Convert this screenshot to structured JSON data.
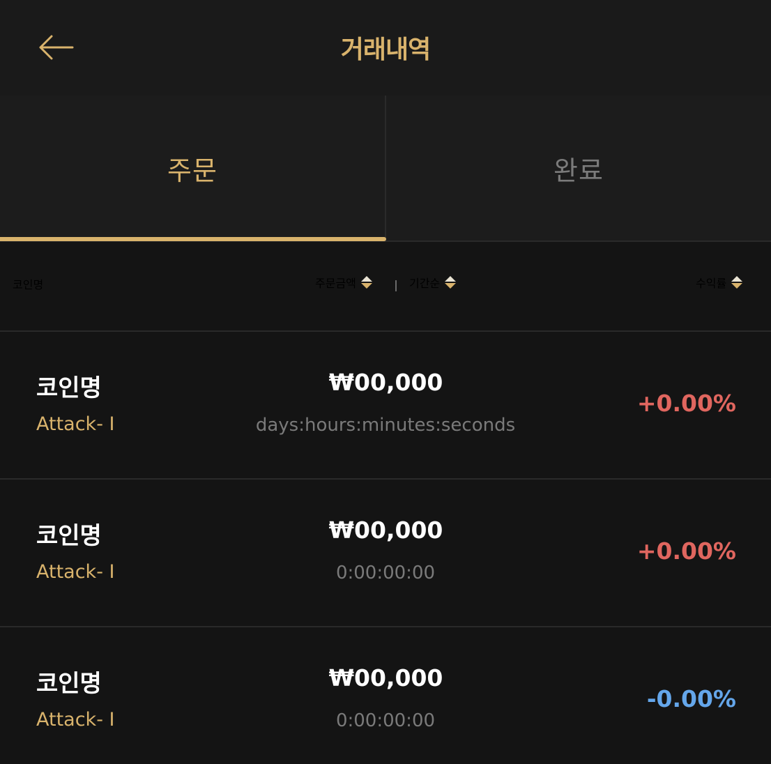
{
  "header": {
    "title": "거래내역",
    "back_icon": "arrow-left-icon"
  },
  "tabs": [
    {
      "label": "주문",
      "active": true
    },
    {
      "label": "완료",
      "active": false
    }
  ],
  "columns": {
    "coin": "코인명",
    "amount": "주문금액",
    "period": "기간순",
    "rate": "수익률"
  },
  "rows": [
    {
      "coin": "코인명",
      "strategy": "Attack- I",
      "amount": "₩00,000",
      "duration": "days:hours:minutes:seconds",
      "rate": "+0.00%",
      "direction": "up"
    },
    {
      "coin": "코인명",
      "strategy": "Attack- I",
      "amount": "₩00,000",
      "duration": "0:00:00:00",
      "rate": "+0.00%",
      "direction": "up"
    },
    {
      "coin": "코인명",
      "strategy": "Attack- I",
      "amount": "₩00,000",
      "duration": "0:00:00:00",
      "rate": "-0.00%",
      "direction": "down"
    }
  ],
  "colors": {
    "accent": "#d9b36c",
    "positive": "#e0665f",
    "negative": "#64a6ea",
    "background": "#141414"
  }
}
